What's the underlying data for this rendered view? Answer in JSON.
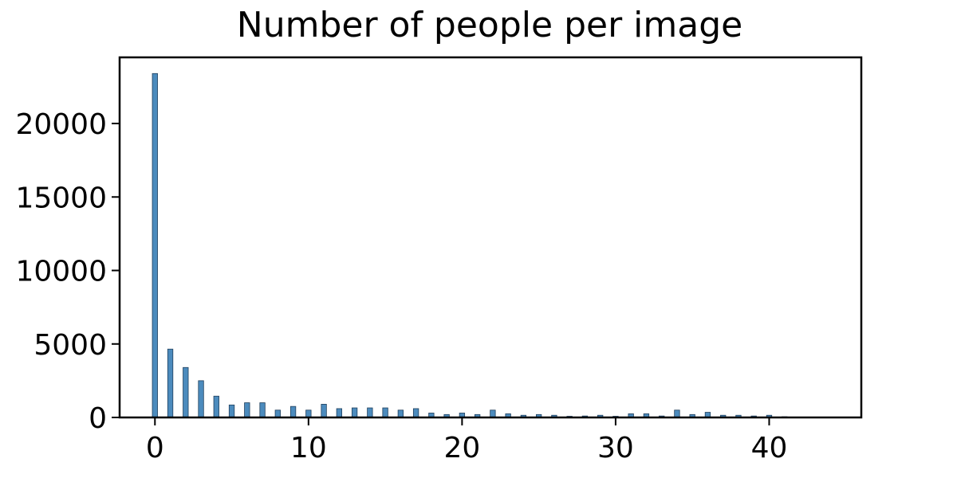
{
  "chart_data": {
    "type": "bar",
    "title": "Number of people per image",
    "xlabel": "",
    "ylabel": "",
    "xlim": [
      -2.3,
      46
    ],
    "ylim": [
      0,
      24500
    ],
    "x_ticks": [
      0,
      10,
      20,
      30,
      40
    ],
    "x_tick_labels": [
      "0",
      "10",
      "20",
      "30",
      "40"
    ],
    "y_ticks": [
      0,
      5000,
      10000,
      15000,
      20000
    ],
    "y_tick_labels": [
      "0",
      "5000",
      "10000",
      "15000",
      "20000"
    ],
    "bar_color": "#4c8bbd",
    "grid": false,
    "x": [
      0,
      1,
      2,
      3,
      4,
      5,
      6,
      7,
      8,
      9,
      10,
      11,
      12,
      13,
      14,
      15,
      16,
      17,
      18,
      19,
      20,
      21,
      22,
      23,
      24,
      25,
      26,
      27,
      28,
      29,
      30,
      31,
      32,
      33,
      34,
      35,
      36,
      37,
      38,
      39,
      40,
      41,
      42,
      43,
      44
    ],
    "values": [
      23400,
      4650,
      3400,
      2500,
      1450,
      850,
      1000,
      1000,
      500,
      750,
      500,
      900,
      600,
      650,
      650,
      650,
      500,
      600,
      300,
      200,
      300,
      200,
      500,
      250,
      150,
      200,
      150,
      80,
      100,
      150,
      80,
      250,
      250,
      100,
      500,
      200,
      350,
      150,
      150,
      100,
      150,
      50,
      30,
      20,
      20
    ]
  }
}
